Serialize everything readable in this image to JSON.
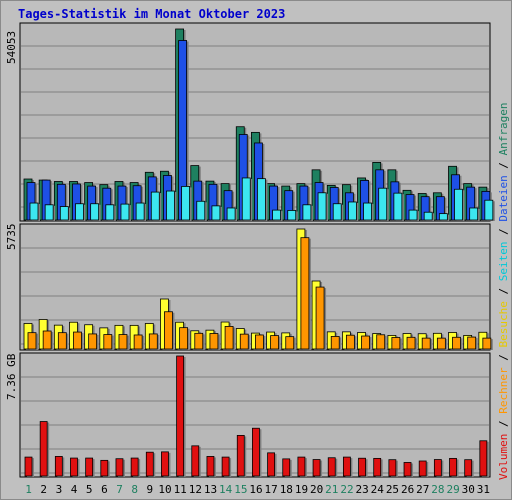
{
  "title": "Tages-Statistik im Monat Oktober 2023",
  "colors": {
    "anfragen": "#1e8060",
    "dateien": "#1e50e6",
    "seiten": "#3ce6f0",
    "besuche": "#ffff30",
    "rechner": "#ff9600",
    "volumen": "#e01010",
    "weekend_day": "#1e8060",
    "weekday": "#000000",
    "title": "#0000cc"
  },
  "legend": {
    "volumen": "Volumen",
    "rechner": "Rechner",
    "besuche": "Besuche",
    "seiten": "Seiten",
    "dateien": "Dateien",
    "anfragen": "Anfragen",
    "sep": " / "
  },
  "chart_data": [
    {
      "type": "bar",
      "panel": "top",
      "ymax_label": "54053",
      "ylim": [
        0,
        54053
      ],
      "grid": true,
      "categories": [
        "1",
        "2",
        "3",
        "4",
        "5",
        "6",
        "7",
        "8",
        "9",
        "10",
        "11",
        "12",
        "13",
        "14",
        "15",
        "16",
        "17",
        "18",
        "19",
        "20",
        "21",
        "22",
        "23",
        "24",
        "25",
        "26",
        "27",
        "28",
        "29",
        "30",
        "31"
      ],
      "weekend": [
        1,
        7,
        8,
        14,
        15,
        21,
        22,
        28,
        29
      ],
      "series": [
        {
          "name": "Anfragen",
          "values": [
            11600,
            11300,
            10900,
            10900,
            10600,
            10000,
            10900,
            10600,
            13500,
            13800,
            54053,
            15400,
            11000,
            10300,
            26400,
            24800,
            10300,
            9600,
            10300,
            14200,
            9800,
            10000,
            11900,
            16300,
            14200,
            8400,
            7500,
            7700,
            15200,
            10300,
            9300
          ]
        },
        {
          "name": "Dateien",
          "values": [
            10600,
            11300,
            10100,
            10200,
            9600,
            9000,
            9600,
            9700,
            12200,
            12600,
            50800,
            11000,
            10100,
            8300,
            24200,
            21800,
            9600,
            8300,
            9600,
            10600,
            9200,
            7700,
            11200,
            14200,
            10800,
            7200,
            6600,
            6600,
            12800,
            9300,
            8100
          ]
        },
        {
          "name": "Seiten",
          "values": [
            4800,
            4300,
            3800,
            4600,
            4600,
            4300,
            4500,
            4800,
            7900,
            8200,
            9500,
            5300,
            4000,
            3400,
            11900,
            11700,
            2800,
            2700,
            4300,
            7700,
            4600,
            5100,
            4800,
            9000,
            7600,
            2800,
            2200,
            1800,
            8700,
            3400,
            5600
          ]
        }
      ]
    },
    {
      "type": "bar",
      "panel": "middle",
      "ymax_label": "5735",
      "ylim": [
        0,
        5735
      ],
      "grid": true,
      "categories": [
        "1",
        "2",
        "3",
        "4",
        "5",
        "6",
        "7",
        "8",
        "9",
        "10",
        "11",
        "12",
        "13",
        "14",
        "15",
        "16",
        "17",
        "18",
        "19",
        "20",
        "21",
        "22",
        "23",
        "24",
        "25",
        "26",
        "27",
        "28",
        "29",
        "30",
        "31"
      ],
      "series": [
        {
          "name": "Besuche",
          "values": [
            1220,
            1410,
            1140,
            1280,
            1160,
            1010,
            1130,
            1130,
            1220,
            2390,
            1280,
            870,
            900,
            1290,
            980,
            760,
            810,
            770,
            5735,
            3250,
            820,
            820,
            790,
            740,
            650,
            740,
            730,
            750,
            790,
            650,
            800
          ]
        },
        {
          "name": "Rechner",
          "values": [
            780,
            860,
            780,
            810,
            720,
            690,
            690,
            670,
            720,
            1780,
            1020,
            750,
            740,
            1080,
            710,
            670,
            640,
            590,
            5320,
            2960,
            600,
            660,
            620,
            680,
            550,
            560,
            520,
            520,
            560,
            570,
            520
          ]
        }
      ]
    },
    {
      "type": "bar",
      "panel": "bottom",
      "ymax_label": "7.36 GB",
      "ylim": [
        0,
        7.36
      ],
      "unit": "GB",
      "grid": true,
      "categories": [
        "1",
        "2",
        "3",
        "4",
        "5",
        "6",
        "7",
        "8",
        "9",
        "10",
        "11",
        "12",
        "13",
        "14",
        "15",
        "16",
        "17",
        "18",
        "19",
        "20",
        "21",
        "22",
        "23",
        "24",
        "25",
        "26",
        "27",
        "28",
        "29",
        "30",
        "31"
      ],
      "series": [
        {
          "name": "Volumen",
          "values": [
            1.16,
            3.34,
            1.2,
            1.1,
            1.1,
            0.96,
            1.06,
            1.1,
            1.46,
            1.48,
            7.36,
            1.85,
            1.2,
            1.16,
            2.49,
            2.93,
            1.42,
            1.05,
            1.16,
            1.01,
            1.12,
            1.16,
            1.09,
            1.08,
            1.0,
            0.83,
            0.92,
            1.01,
            1.08,
            1.0,
            2.16
          ]
        }
      ]
    }
  ]
}
